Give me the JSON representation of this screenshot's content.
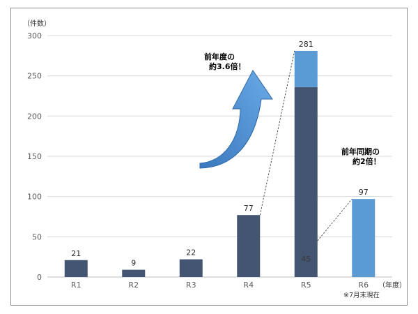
{
  "chart_data": {
    "type": "bar",
    "y_unit_label": "（件数）",
    "x_unit_label": "（年度）",
    "categories": [
      "R1",
      "R2",
      "R3",
      "R4",
      "R5",
      "R6"
    ],
    "series": [
      {
        "values": [
          21,
          9,
          22,
          77,
          236,
          0
        ],
        "color": "#435570"
      },
      {
        "values": [
          0,
          0,
          0,
          0,
          45,
          97
        ],
        "color": "#5b9bd5"
      }
    ],
    "data_labels": [
      "21",
      "9",
      "22",
      "77",
      "281",
      "97"
    ],
    "inner_label": "45",
    "ylim": [
      0,
      300
    ],
    "yticks": [
      0,
      50,
      100,
      150,
      200,
      250,
      300
    ],
    "ytick_labels": [
      "0",
      "50",
      "100",
      "150",
      "200",
      "250",
      "300"
    ],
    "grid": true,
    "annotations": [
      {
        "lines": [
          "前年度の",
          "約3.6倍！"
        ],
        "between": [
          "R4",
          "R5"
        ]
      },
      {
        "lines": [
          "前年同期の",
          "約2倍！"
        ],
        "between": [
          "R5",
          "R6"
        ]
      }
    ],
    "arrow_color": "#5b9bd5",
    "footnote": "※7月末現在"
  }
}
